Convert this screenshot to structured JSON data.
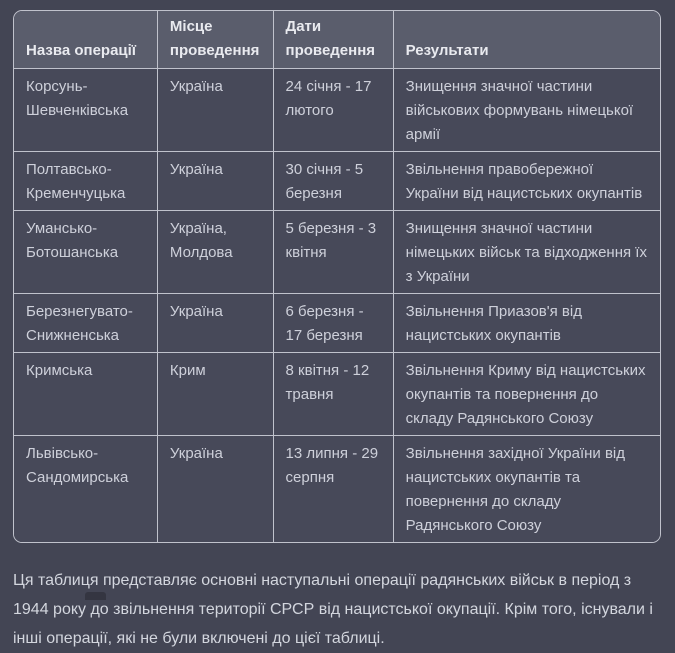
{
  "colors": {
    "page_bg": "#434554",
    "header_bg": "#5a5d6c",
    "cell_bg": "#474959",
    "border": "#c0c2cc",
    "header_text": "#e9eaef",
    "cell_text": "#ced0da",
    "paragraph_text": "#d3d6de",
    "partial_element": "#343541"
  },
  "table": {
    "columns": [
      "Назва операції",
      "Місце проведення",
      "Дати проведення",
      "Результати"
    ],
    "rows": [
      {
        "name": "Корсунь-Шевченківська",
        "place": "Україна",
        "dates": "24 січня - 17 лютого",
        "result": "Знищення значної частини військових формувань німецької армії"
      },
      {
        "name": "Полтавсько-Кременчуцька",
        "place": "Україна",
        "dates": "30 січня - 5 березня",
        "result": "Звільнення правобережної України від нацистських окупантів"
      },
      {
        "name": "Умансько-Ботошанська",
        "place": "Україна, Молдова",
        "dates": "5 березня - 3 квітня",
        "result": "Знищення значної частини німецьких військ та відходження їх з України"
      },
      {
        "name": "Березнегувато-Снижненська",
        "place": "Україна",
        "dates": "6 березня - 17 березня",
        "result": "Звільнення Приазов'я від нацистських окупантів"
      },
      {
        "name": "Кримська",
        "place": "Крим",
        "dates": "8 квітня - 12 травня",
        "result": "Звільнення Криму від нацистських окупантів та повернення до складу Радянського Союзу"
      },
      {
        "name": "Львівсько-Сандомирська",
        "place": "Україна",
        "dates": "13 липня - 29 серпня",
        "result": "Звільнення західної України від нацистських окупантів та повернення до складу Радянського Союзу"
      }
    ]
  },
  "summary": {
    "text": "Ця таблиця представляє основні наступальні операції радянських військ в період з 1944 року до звільнення території СРСР від нацистської окупації. Крім того, існували і інші операції, які не були включені до цієї таблиці."
  }
}
